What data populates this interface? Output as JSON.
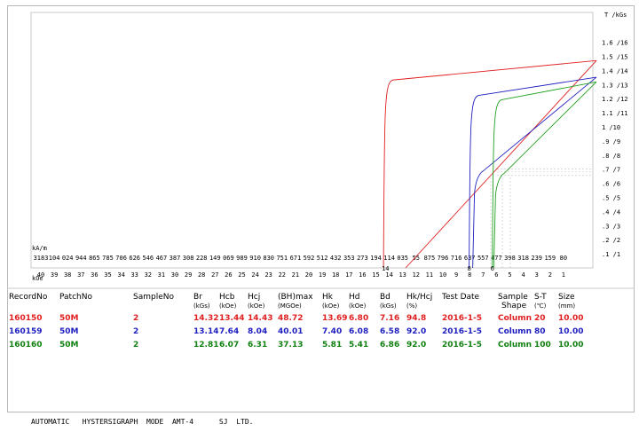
{
  "footer": "AUTOMATIC   HYSTERSIGRAPH  MODE  AMT-4      SJ  LTD.",
  "chart_data": {
    "type": "line",
    "y_axis_title": "T /kGs",
    "x_axis_title_top": "kA/m",
    "x_axis_title_bottom": "kOe",
    "y_ticks": [
      ".1 /1",
      ".2 /2",
      ".3 /3",
      ".4 /4",
      ".5 /5",
      ".6 /6",
      ".7 /7",
      ".8 /8",
      ".9 /9",
      "1 /10",
      "1.1 /11",
      "1.2 /12",
      "1.3 /13",
      "1.4 /14",
      "1.5 /15",
      "1.6 /16"
    ],
    "x_ticks_kam": [
      "3183",
      "104",
      "024",
      "944",
      "865",
      "785",
      "706",
      "626",
      "546",
      "467",
      "387",
      "308",
      "228",
      "149",
      "069",
      "989",
      "910",
      "830",
      "751",
      "671",
      "592",
      "512",
      "432",
      "353",
      "273",
      "194",
      "114",
      "035",
      "55",
      "875",
      "796",
      "716",
      "637",
      "557",
      "477",
      "398",
      "318",
      "239",
      "159",
      "80"
    ],
    "x_ticks_koe": [
      "40",
      "39",
      "38",
      "37",
      "36",
      "35",
      "34",
      "33",
      "32",
      "31",
      "30",
      "29",
      "28",
      "27",
      "26",
      "25",
      "24",
      "23",
      "22",
      "21",
      "20",
      "19",
      "18",
      "17",
      "16",
      "15",
      "14",
      "13",
      "12",
      "11",
      "10",
      "9",
      "8",
      "7",
      "6",
      "5",
      "4",
      "3",
      "2",
      "1"
    ],
    "xlim_koe": [
      -40,
      0
    ],
    "ylim_kgs": [
      0,
      16
    ],
    "series": [
      {
        "name": "160150",
        "color": "#e02020",
        "Br_kgs": 14.32,
        "Hcj_koe": 14.43,
        "Hcb_koe": 13.44
      },
      {
        "name": "160159",
        "color": "#2020c0",
        "Br_kgs": 13.14,
        "Hcj_koe": 8.04,
        "Hcb_koe": 7.64
      },
      {
        "name": "160160",
        "color": "#20a020",
        "Br_kgs": 12.81,
        "Hcj_koe": 6.31,
        "Hcb_koe": 6.07
      }
    ]
  },
  "table": {
    "headers": [
      "RecordNo",
      "PatchNo",
      "SampleNo",
      "Br",
      "Hcb",
      "Hcj",
      "(BH)max",
      "Hk",
      "Hd",
      "Bd",
      "Hk/Hcj",
      "Test Date",
      "Sample",
      "S-T",
      "Size"
    ],
    "units": [
      "",
      "",
      "",
      "(kGs)",
      "(kOe)",
      "(kOe)",
      "(MGOe)",
      "(kOe)",
      "(kOe)",
      "(kGs)",
      "(%)",
      "",
      "Shape",
      "(℃)",
      "(mm)"
    ],
    "rows": [
      {
        "color": "#e02020",
        "cells": [
          "160150",
          "50M",
          "2",
          "14.32",
          "13.44",
          "14.43",
          "48.72",
          "13.69",
          "6.80",
          "7.16",
          "94.8",
          "2016-1-5",
          "Column",
          "20",
          "10.00"
        ]
      },
      {
        "color": "#2020c0",
        "cells": [
          "160159",
          "50M",
          "2",
          "13.14",
          "7.64",
          "8.04",
          "40.01",
          "7.40",
          "6.08",
          "6.58",
          "92.0",
          "2016-1-5",
          "Column",
          "80",
          "10.00"
        ]
      },
      {
        "color": "#108010",
        "cells": [
          "160160",
          "50M",
          "2",
          "12.81",
          "6.07",
          "6.31",
          "37.13",
          "5.81",
          "5.41",
          "6.86",
          "92.0",
          "2016-1-5",
          "Column",
          "100",
          "10.00"
        ]
      }
    ]
  }
}
